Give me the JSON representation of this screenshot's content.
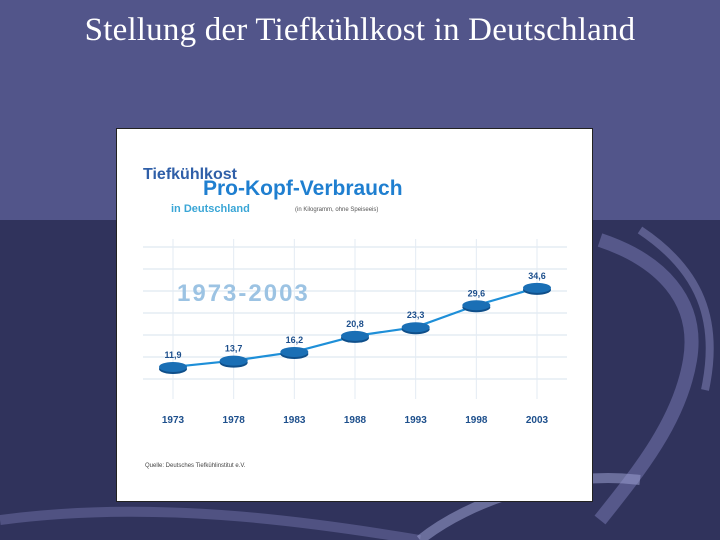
{
  "slide": {
    "title": "Stellung der Tiefkühlkost in Deutschland"
  },
  "chart_data": {
    "type": "line",
    "title_line1": "Tiefkühlkost",
    "title_line2": "Pro-Kopf-Verbrauch",
    "title_line3": "in Deutschland",
    "unit_note": "(in Kilogramm, ohne Speiseeis)",
    "period_label": "1973-2003",
    "source": "Quelle: Deutsches Tiefkühlinstitut e.V.",
    "categories": [
      "1973",
      "1978",
      "1983",
      "1988",
      "1993",
      "1998",
      "2003"
    ],
    "values": [
      11.9,
      13.7,
      16.2,
      20.8,
      23.3,
      29.6,
      34.6
    ],
    "value_labels": [
      "11,9",
      "13,7",
      "16,2",
      "20,8",
      "23,3",
      "29,6",
      "34,6"
    ],
    "xlabel": "",
    "ylabel": "",
    "ylim": [
      5,
      40
    ],
    "grid": true,
    "legend": "none",
    "colors": {
      "title_dark": "#2f5fa8",
      "title_main": "#1f7fd0",
      "subtitle": "#3aa6d6",
      "line": "#1e8fd8",
      "marker": "#1a6fb5",
      "labels": "#1d4f8c",
      "period": "#9cc3e3"
    }
  }
}
